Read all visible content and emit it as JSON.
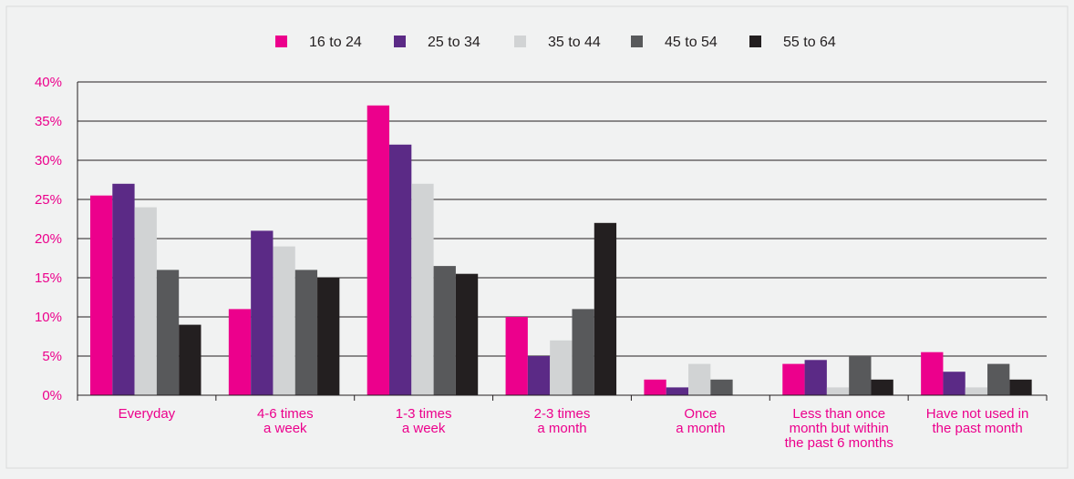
{
  "chart_data": {
    "type": "bar",
    "title": "",
    "xlabel": "",
    "ylabel": "",
    "ylim": [
      0,
      40
    ],
    "yticks": [
      0,
      5,
      10,
      15,
      20,
      25,
      30,
      35,
      40
    ],
    "ytick_labels": [
      "0%",
      "5%",
      "10%",
      "15%",
      "20%",
      "25%",
      "30%",
      "35%",
      "40%"
    ],
    "grid": true,
    "legend_position": "top-center",
    "categories": [
      [
        "Everyday"
      ],
      [
        "4-6 times",
        "a week"
      ],
      [
        "1-3 times",
        "a week"
      ],
      [
        "2-3 times",
        "a month"
      ],
      [
        "Once",
        "a month"
      ],
      [
        "Less than once",
        "month but within",
        "the past 6 months"
      ],
      [
        "Have not used in",
        "the past month"
      ]
    ],
    "series": [
      {
        "name": "16 to 24",
        "color": "#ec008c",
        "values": [
          25.5,
          11,
          37,
          10,
          2,
          4,
          5.5
        ]
      },
      {
        "name": "25 to 34",
        "color": "#5b2a86",
        "values": [
          27,
          21,
          32,
          5,
          1,
          4.5,
          3
        ]
      },
      {
        "name": "35 to 44",
        "color": "#d1d3d4",
        "values": [
          24,
          19,
          27,
          7,
          4,
          1,
          1
        ]
      },
      {
        "name": "45 to 54",
        "color": "#58595b",
        "values": [
          16,
          16,
          16.5,
          11,
          2,
          5,
          4
        ]
      },
      {
        "name": "55 to 64",
        "color": "#231f20",
        "values": [
          9,
          15,
          15.5,
          22,
          0,
          2,
          2
        ]
      }
    ],
    "colors": {
      "background": "#f1f2f2",
      "grid": "#231f20",
      "axis_text": "#ec008c",
      "legend_text": "#231f20"
    }
  }
}
